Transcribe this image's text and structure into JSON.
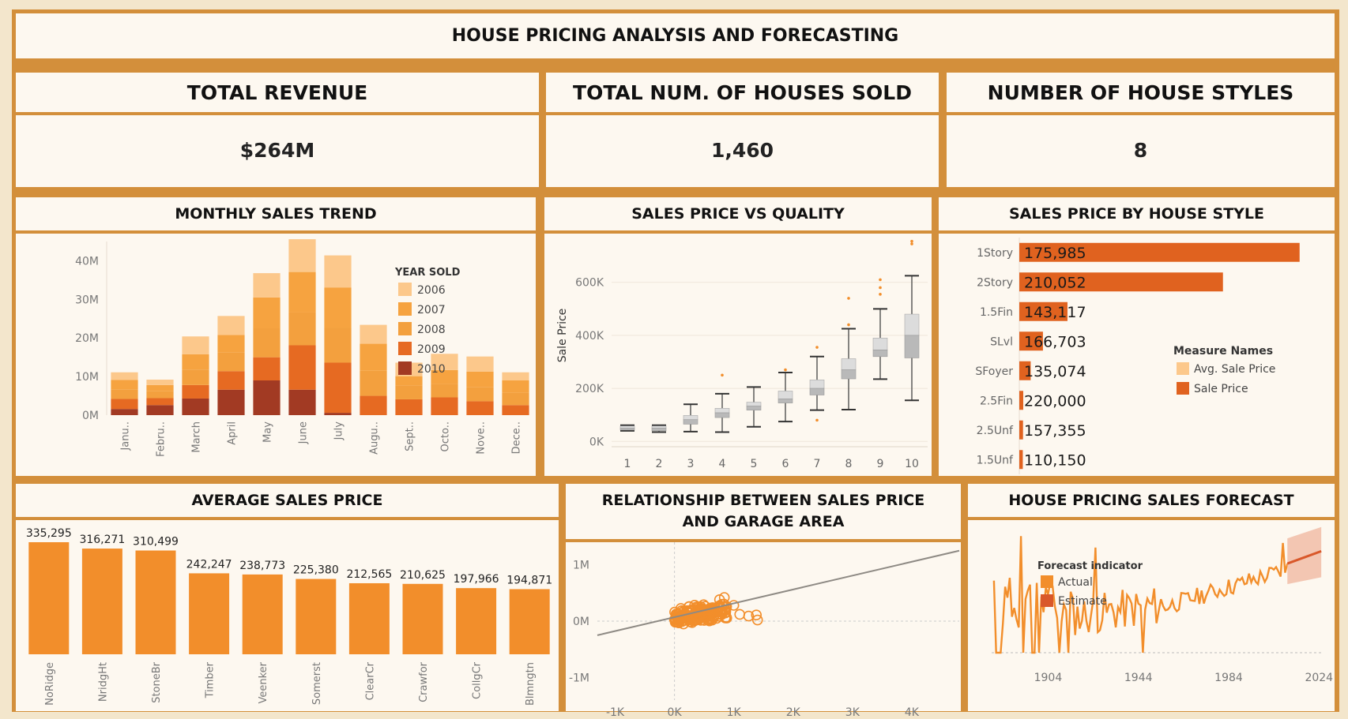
{
  "header": {
    "title": "HOUSE PRICING ANALYSIS AND FORECASTING"
  },
  "kpis": [
    {
      "label": "TOTAL REVENUE",
      "value": "$264M"
    },
    {
      "label": "TOTAL NUM. OF HOUSES SOLD",
      "value": "1,460"
    },
    {
      "label": "NUMBER OF HOUSE STYLES",
      "value": "8"
    }
  ],
  "colors": {
    "frame": "#d38f3b",
    "panel": "#fdf8f0",
    "bar_orange": "#f28e2b",
    "dark_orange": "#e0621f"
  },
  "chart_data": [
    {
      "id": "monthly",
      "type": "bar",
      "title": "MONTHLY SALES TREND",
      "categories": [
        "Janu..",
        "Febru..",
        "March",
        "April",
        "May",
        "June",
        "July",
        "Augu..",
        "Sept..",
        "Octo..",
        "Nove..",
        "Dece.."
      ],
      "yticks": [
        "0M",
        "10M",
        "20M",
        "30M",
        "40M"
      ],
      "ylim": [
        0,
        45
      ],
      "legend_title": "YEAR SOLD",
      "legend_position": "top-right",
      "series": [
        {
          "name": "2010",
          "color": "#a23a23",
          "values": [
            1.6,
            2.6,
            4.3,
            6.6,
            9.0,
            6.6,
            0.6,
            0,
            0,
            0,
            0,
            0
          ]
        },
        {
          "name": "2009",
          "color": "#e66a22",
          "values": [
            2.6,
            1.8,
            3.5,
            4.8,
            6.0,
            11.5,
            13.0,
            5.0,
            4.1,
            4.6,
            3.6,
            2.6
          ]
        },
        {
          "name": "2008",
          "color": "#f3a03e",
          "values": [
            2.5,
            1.8,
            4.0,
            4.9,
            7.5,
            8.5,
            9.0,
            6.5,
            3.6,
            3.5,
            3.7,
            3.2
          ]
        },
        {
          "name": "2007",
          "color": "#f6a340",
          "values": [
            2.4,
            1.6,
            4.0,
            4.5,
            8.0,
            10.5,
            10.5,
            7.0,
            2.4,
            3.6,
            4.0,
            3.2
          ]
        },
        {
          "name": "2006",
          "color": "#fcc88b",
          "values": [
            2.0,
            1.4,
            4.6,
            4.9,
            6.3,
            8.5,
            8.3,
            4.9,
            3.5,
            4.2,
            3.9,
            2.1
          ]
        }
      ]
    },
    {
      "id": "quality",
      "type": "box",
      "title": "SALES PRICE VS  QUALITY",
      "ylabel": "Sale Price",
      "categories": [
        "1",
        "2",
        "3",
        "4",
        "5",
        "6",
        "7",
        "8",
        "9",
        "10"
      ],
      "yticks": [
        "0K",
        "200K",
        "400K",
        "600K"
      ],
      "ylim": [
        -20000,
        760000
      ],
      "boxes": [
        {
          "min": 40000,
          "q1": 43000,
          "median": 50000,
          "q3": 58000,
          "max": 61000
        },
        {
          "min": 35000,
          "q1": 40000,
          "median": 50000,
          "q3": 58000,
          "max": 61000
        },
        {
          "min": 37000,
          "q1": 65000,
          "median": 82000,
          "q3": 98000,
          "max": 140000
        },
        {
          "min": 35000,
          "q1": 90000,
          "median": 108000,
          "q3": 125000,
          "max": 180000
        },
        {
          "min": 55000,
          "q1": 118000,
          "median": 133000,
          "q3": 148000,
          "max": 205000
        },
        {
          "min": 75000,
          "q1": 145000,
          "median": 160000,
          "q3": 190000,
          "max": 260000
        },
        {
          "min": 118000,
          "q1": 175000,
          "median": 200000,
          "q3": 232000,
          "max": 320000
        },
        {
          "min": 120000,
          "q1": 236000,
          "median": 270000,
          "q3": 312000,
          "max": 425000
        },
        {
          "min": 235000,
          "q1": 320000,
          "median": 345000,
          "q3": 390000,
          "max": 500000
        },
        {
          "min": 155000,
          "q1": 315000,
          "median": 400000,
          "q3": 480000,
          "max": 625000
        }
      ],
      "outliers": [
        [
          4,
          250000
        ],
        [
          6,
          270000
        ],
        [
          7,
          355000
        ],
        [
          7,
          80000
        ],
        [
          8,
          540000
        ],
        [
          8,
          440000
        ],
        [
          9,
          580000
        ],
        [
          9,
          610000
        ],
        [
          9,
          555000
        ],
        [
          10,
          745000
        ],
        [
          10,
          755000
        ]
      ]
    },
    {
      "id": "style",
      "type": "bar",
      "orientation": "horizontal",
      "title": "SALES PRICE BY HOUSE STYLE",
      "categories": [
        "1Story",
        "2Story",
        "1.5Fin",
        "SLvl",
        "SFoyer",
        "2.5Fin",
        "2.5Unf",
        "1.5Unf"
      ],
      "labels": [
        "175,985",
        "210,052",
        "143,117",
        "166,703",
        "135,074",
        "220,000",
        "157,355",
        "110,150"
      ],
      "sale_price_totals_m": [
        128.0,
        93.0,
        22.0,
        10.8,
        5.2,
        1.8,
        1.7,
        1.6
      ],
      "legend_title": "Measure Names",
      "legend_position": "right",
      "legend": [
        {
          "name": "Avg. Sale Price",
          "color": "#fcc88b"
        },
        {
          "name": "Sale Price",
          "color": "#e0621f"
        }
      ]
    },
    {
      "id": "avgprice",
      "type": "bar",
      "title": "AVERAGE SALES PRICE",
      "categories": [
        "NoRidge",
        "NridgHt",
        "StoneBr",
        "Timber",
        "Veenker",
        "Somerst",
        "ClearCr",
        "Crawfor",
        "CollgCr",
        "Blmngtn"
      ],
      "values": [
        335295,
        316271,
        310499,
        242247,
        238773,
        225380,
        212565,
        210625,
        197966,
        194871
      ],
      "labels": [
        "335,295",
        "316,271",
        "310,499",
        "242,247",
        "238,773",
        "225,380",
        "212,565",
        "210,625",
        "197,966",
        "194,871"
      ]
    },
    {
      "id": "garage",
      "type": "scatter",
      "title": "RELATIONSHIP BETWEEN SALES PRICE AND GARAGE AREA",
      "xticks": [
        "-1K",
        "0K",
        "1K",
        "2K",
        "3K",
        "4K"
      ],
      "yticks": [
        "-1M",
        "0M",
        "1M"
      ],
      "xlim": [
        -1300,
        4800
      ],
      "ylim": [
        -1400000,
        1400000
      ],
      "trend_line": [
        [
          -1300,
          -250000
        ],
        [
          4800,
          1250000
        ]
      ]
    },
    {
      "id": "forecast",
      "type": "line",
      "title": "HOUSE PRICING SALES FORECAST",
      "xticks": [
        "1904",
        "1944",
        "1984",
        "2024"
      ],
      "xlim": [
        1872,
        2026
      ],
      "ylim": [
        0,
        290000
      ],
      "legend_title": "Forecast indicator",
      "legend_position": "top-left",
      "legend": [
        {
          "name": "Actual",
          "color": "#f28e2b"
        },
        {
          "name": "Estimate",
          "color": "#d9582a"
        }
      ]
    }
  ]
}
